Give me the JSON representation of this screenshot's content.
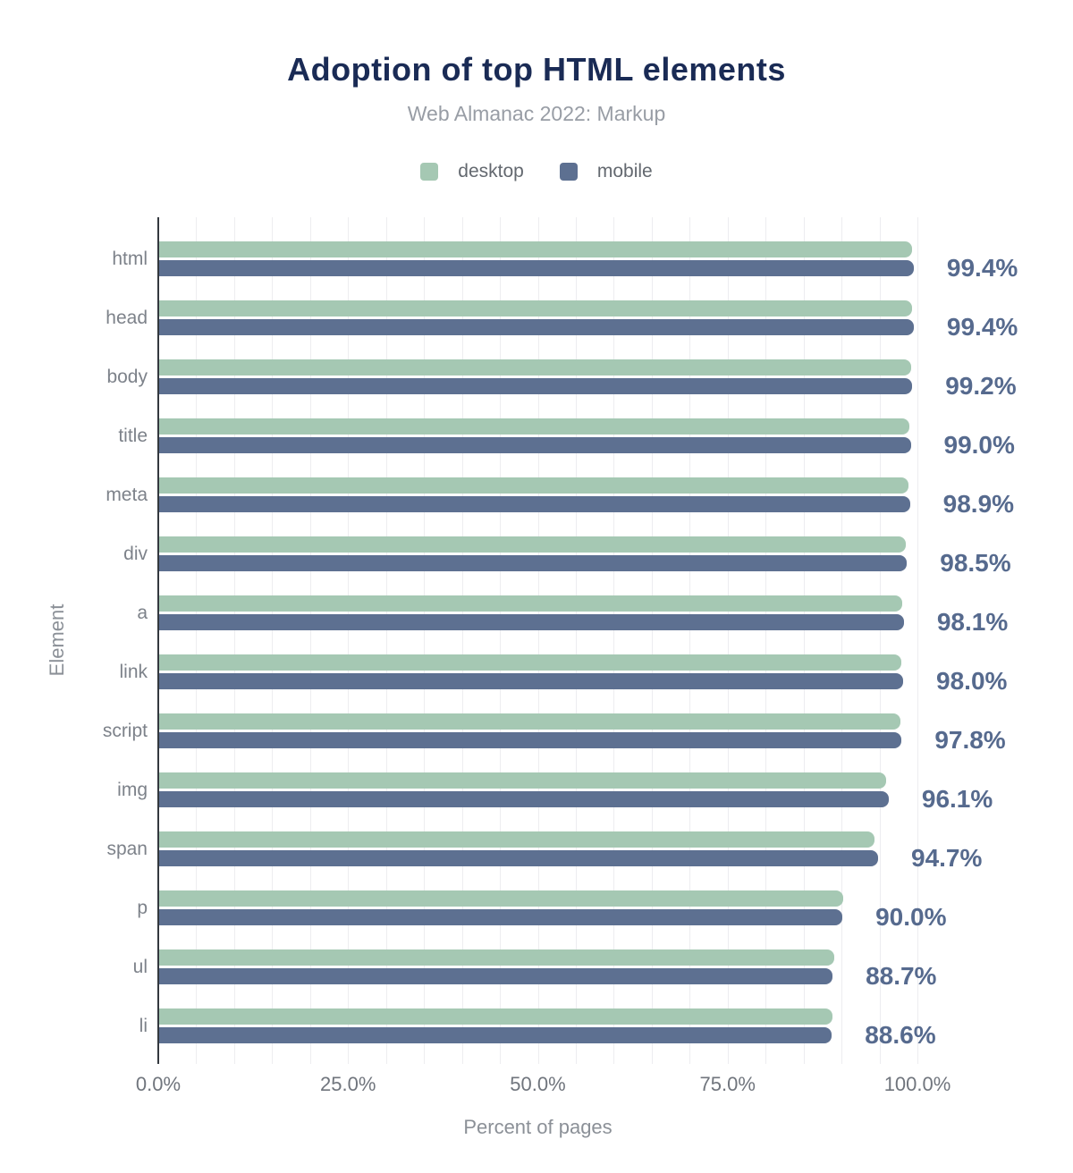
{
  "chart_data": {
    "type": "bar",
    "orientation": "horizontal",
    "title": "Adoption of top HTML elements",
    "subtitle": "Web Almanac 2022: Markup",
    "xlabel": "Percent of pages",
    "ylabel": "Element",
    "categories": [
      "html",
      "head",
      "body",
      "title",
      "meta",
      "div",
      "a",
      "link",
      "script",
      "img",
      "span",
      "p",
      "ul",
      "li"
    ],
    "series": [
      {
        "name": "desktop",
        "color": "#a5c8b3",
        "values": [
          99.2,
          99.2,
          99.0,
          98.8,
          98.7,
          98.3,
          97.9,
          97.8,
          97.6,
          95.8,
          94.2,
          90.1,
          88.9,
          88.7
        ]
      },
      {
        "name": "mobile",
        "color": "#5d7091",
        "values": [
          99.4,
          99.4,
          99.2,
          99.0,
          98.9,
          98.5,
          98.1,
          98.0,
          97.8,
          96.1,
          94.7,
          90.0,
          88.7,
          88.6
        ]
      }
    ],
    "value_labels": [
      "99.4%",
      "99.4%",
      "99.2%",
      "99.0%",
      "98.9%",
      "98.5%",
      "98.1%",
      "98.0%",
      "97.8%",
      "96.1%",
      "94.7%",
      "90.0%",
      "88.7%",
      "88.6%"
    ],
    "x_ticks": [
      {
        "label": "0.0%",
        "value": 0
      },
      {
        "label": "25.0%",
        "value": 25
      },
      {
        "label": "50.0%",
        "value": 50
      },
      {
        "label": "75.0%",
        "value": 75
      },
      {
        "label": "100.0%",
        "value": 100
      }
    ],
    "xlim": [
      0,
      100
    ],
    "grid": {
      "step": 5,
      "on": true,
      "color": "#ededf0"
    },
    "legend": [
      {
        "label": "desktop",
        "color": "#a5c8b3"
      },
      {
        "label": "mobile",
        "color": "#5d7091"
      }
    ],
    "legend_position": "top",
    "value_label_color": "#566a8e"
  }
}
